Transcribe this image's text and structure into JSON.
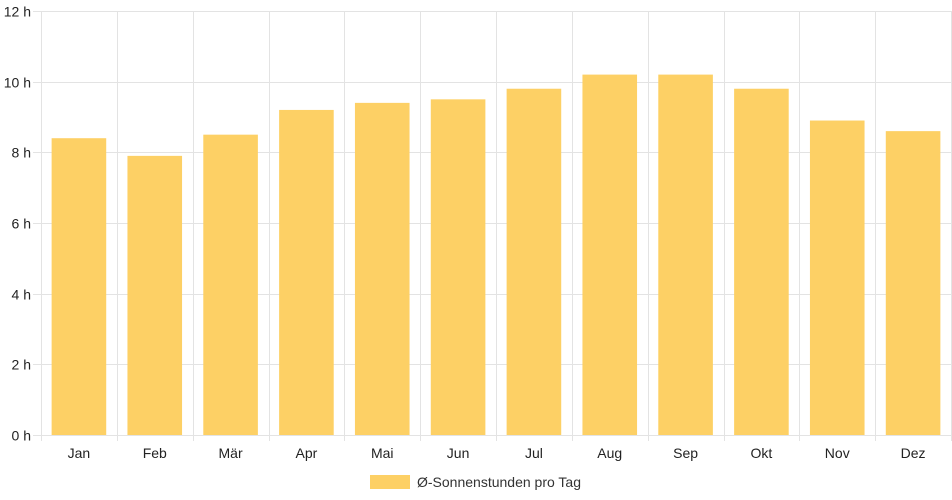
{
  "chart_data": {
    "type": "bar",
    "categories": [
      "Jan",
      "Feb",
      "Mär",
      "Apr",
      "Mai",
      "Jun",
      "Jul",
      "Aug",
      "Sep",
      "Okt",
      "Nov",
      "Dez"
    ],
    "series": [
      {
        "name": "Ø-Sonnenstunden pro Tag",
        "values": [
          8.4,
          7.9,
          8.5,
          9.2,
          9.4,
          9.5,
          9.8,
          10.2,
          10.2,
          9.8,
          8.9,
          8.6
        ]
      }
    ],
    "y_ticks": [
      "0 h",
      "2 h",
      "4 h",
      "6 h",
      "8 h",
      "10 h",
      "12 h"
    ],
    "ylim": [
      0,
      12
    ],
    "y_step": 2,
    "grid": true,
    "legend_position": "bottom",
    "colors": {
      "bar": "#fdd065",
      "grid": "#e3e3e3",
      "axis_text": "#222222"
    }
  }
}
